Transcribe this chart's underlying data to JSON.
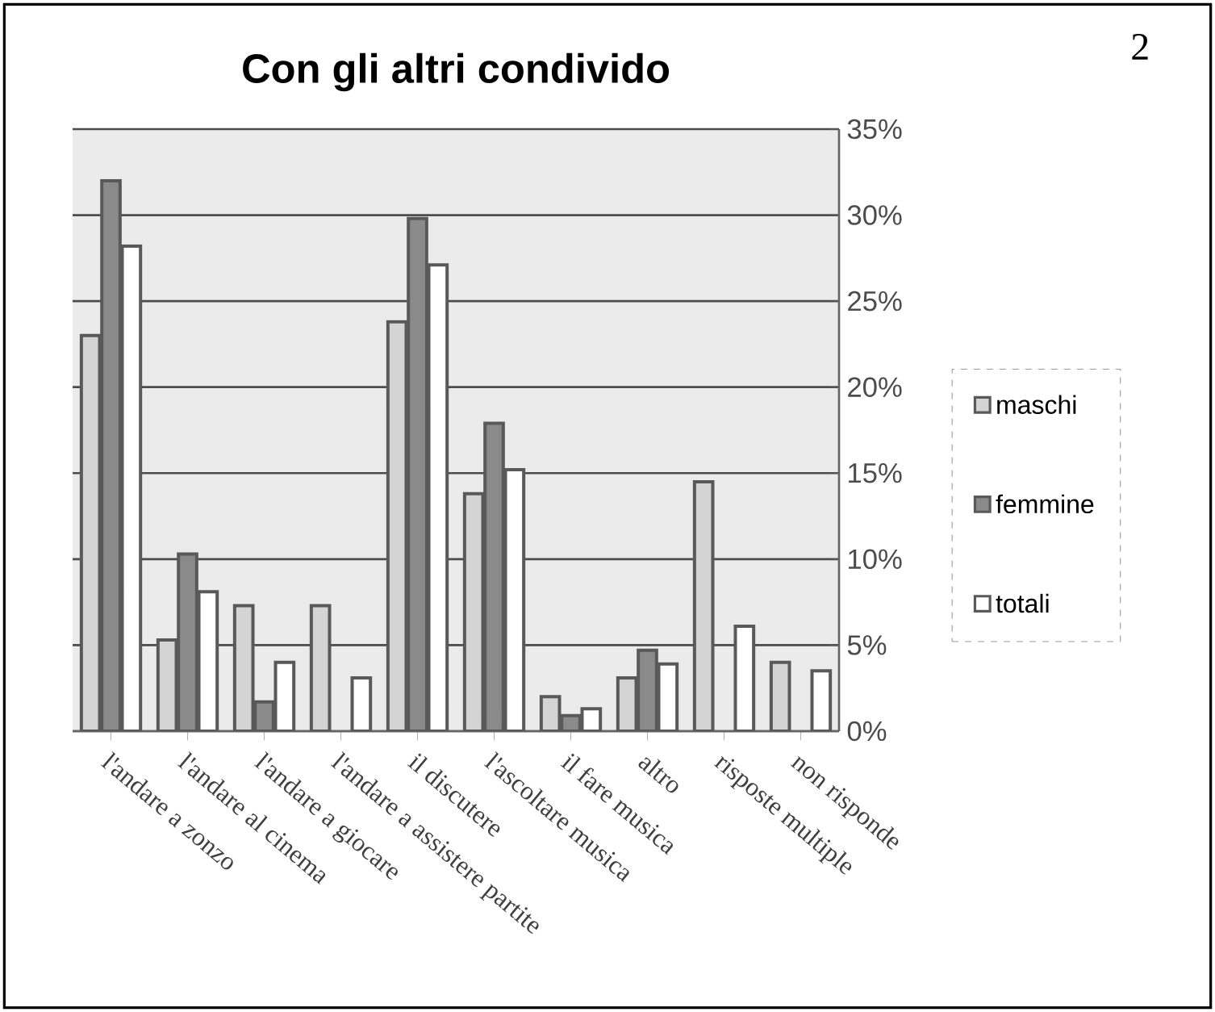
{
  "chart_data": {
    "type": "bar",
    "title": "Con gli altri condivido",
    "annotations": [
      "2"
    ],
    "categories": [
      "l'andare a zonzo",
      "l'andare al cinema",
      "l'andare a giocare",
      "l'andare a assistere partite",
      "il discutere",
      "l'ascoltare musica",
      "il fare musica",
      "altro",
      "risposte multiple",
      "non risponde"
    ],
    "series": [
      {
        "name": "maschi",
        "color": "#d4d4d4",
        "values": [
          23,
          5.3,
          7.3,
          7.3,
          23.8,
          13.8,
          2.0,
          3.1,
          14.5,
          4.0
        ]
      },
      {
        "name": "femmine",
        "color": "#8a8a8a",
        "values": [
          32,
          10.3,
          1.7,
          null,
          29.8,
          17.9,
          0.9,
          4.7,
          null,
          null
        ]
      },
      {
        "name": "totali",
        "color": "#ffffff",
        "values": [
          28.2,
          8.1,
          4.0,
          3.1,
          27.1,
          15.2,
          1.3,
          3.9,
          6.1,
          3.5
        ]
      }
    ],
    "ylim": [
      0,
      35
    ],
    "yticks": [
      {
        "value": 0,
        "label": "0%"
      },
      {
        "value": 5,
        "label": "5%"
      },
      {
        "value": 10,
        "label": "10%"
      },
      {
        "value": 15,
        "label": "15%"
      },
      {
        "value": 20,
        "label": "20%"
      },
      {
        "value": 25,
        "label": "25%"
      },
      {
        "value": 30,
        "label": "30%"
      },
      {
        "value": 35,
        "label": "35%"
      }
    ],
    "grid": "y",
    "legend": "right"
  }
}
